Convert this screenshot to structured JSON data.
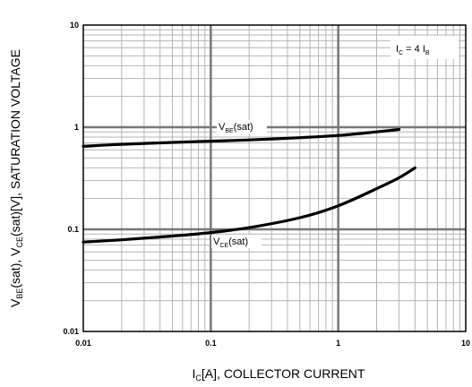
{
  "chart_data": {
    "type": "line",
    "xscale": "log",
    "yscale": "log",
    "xlim": [
      0.01,
      10
    ],
    "ylim": [
      0.01,
      10
    ],
    "x_ticks": [
      {
        "value": 0.01,
        "label": "0.01"
      },
      {
        "value": 0.1,
        "label": "0.1"
      },
      {
        "value": 1,
        "label": "1"
      },
      {
        "value": 10,
        "label": "10"
      }
    ],
    "y_ticks": [
      {
        "value": 0.01,
        "label": "0.01"
      },
      {
        "value": 0.1,
        "label": "0.1"
      },
      {
        "value": 1,
        "label": "1"
      },
      {
        "value": 10,
        "label": "10"
      }
    ],
    "grid": true,
    "xlabel": {
      "main": "I",
      "sub": "C",
      "rest": "[A], COLLECTOR CURRENT"
    },
    "ylabel": {
      "p1": "V",
      "s1": "BE",
      "p2": "(sat), V",
      "s2": "CE",
      "p3": "(sat)[V], SATURATION VOLTAGE"
    },
    "condition": {
      "p1": "I",
      "s1": "C",
      "p2": " = 4 I",
      "s2": "B"
    },
    "series": [
      {
        "name": {
          "main": "V",
          "sub": "BE",
          "rest": "(sat)"
        },
        "x": [
          0.01,
          0.02,
          0.05,
          0.1,
          0.2,
          0.5,
          1,
          2,
          3
        ],
        "y": [
          0.65,
          0.68,
          0.71,
          0.73,
          0.75,
          0.79,
          0.83,
          0.9,
          0.95
        ]
      },
      {
        "name": {
          "main": "V",
          "sub": "CE",
          "rest": "(sat)"
        },
        "x": [
          0.01,
          0.02,
          0.05,
          0.1,
          0.2,
          0.5,
          1,
          2,
          3,
          4
        ],
        "y": [
          0.075,
          0.079,
          0.086,
          0.093,
          0.104,
          0.13,
          0.17,
          0.25,
          0.32,
          0.4
        ]
      }
    ]
  }
}
